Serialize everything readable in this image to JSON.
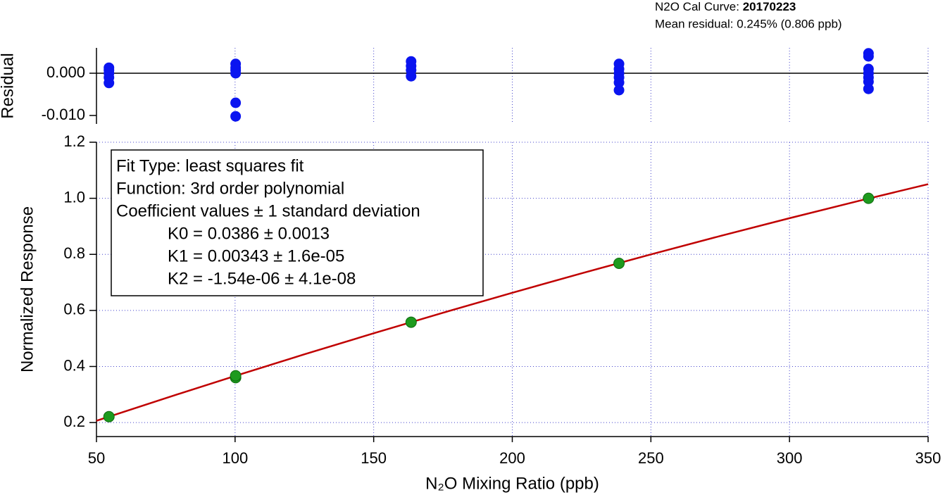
{
  "chart_data": [
    {
      "type": "scatter",
      "title_prefix": "N2O Cal Curve:",
      "title_date": "20170223",
      "subtitle": "Mean residual: 0.245% (0.806 ppb)",
      "ylabel": "Residual",
      "xlim": [
        50,
        350
      ],
      "xticks": [
        50,
        100,
        150,
        200,
        250,
        300,
        350
      ],
      "ylim": [
        -0.012,
        0.006
      ],
      "yticks": [
        {
          "value": 0,
          "label": "0.000"
        },
        {
          "value": -0.01,
          "label": "-0.010"
        }
      ],
      "grid": true,
      "series": [
        {
          "color": "#0a14f0",
          "x": [
            54.5,
            54.5,
            54.5,
            54.5,
            54.5,
            100.2,
            100.2,
            100.2,
            100.2,
            100.2,
            100.2,
            163.5,
            163.5,
            163.5,
            163.5,
            238.5,
            238.5,
            238.5,
            238.5,
            238.5,
            238.5,
            328.5,
            328.5,
            328.5,
            328.5,
            328.5,
            328.5,
            328.5
          ],
          "values": [
            0.0013,
            0.0007,
            0,
            -0.001,
            -0.0023,
            0.0022,
            0.0013,
            0.0007,
            0,
            -0.007,
            -0.0102,
            0.0028,
            0.0017,
            0.0007,
            -0.0007,
            0.0022,
            0.001,
            0,
            -0.001,
            -0.0022,
            -0.004,
            0.0047,
            0.004,
            0.001,
            0,
            -0.001,
            -0.002,
            -0.0037
          ]
        }
      ]
    },
    {
      "type": "scatter",
      "xlabel": "N₂O Mixing Ratio (ppb)",
      "ylabel": "Normalized Response",
      "xlim": [
        50,
        350
      ],
      "xticks": [
        50,
        100,
        150,
        200,
        250,
        300,
        350
      ],
      "ylim": [
        0.15,
        1.2
      ],
      "yticks": [
        0.2,
        0.4,
        0.6,
        0.8,
        {
          "value": 1.0,
          "label": "1.0"
        },
        1.2
      ],
      "grid": true,
      "annotation": {
        "header": [
          "Fit Type: least squares fit",
          "Function: 3rd order polynomial",
          "Coefficient values ± 1 standard deviation"
        ],
        "coefficients": [
          "K0 = 0.0386 ± 0.0013",
          "K1 = 0.00343 ± 1.6e-05",
          "K2 = -1.54e-06 ± 4.1e-08"
        ]
      },
      "series": [
        {
          "kind": "line",
          "color": "#c00000",
          "x": [
            50,
            75,
            100,
            125,
            150,
            175,
            200,
            225,
            250,
            275,
            300,
            325,
            350
          ],
          "values": [
            0.2063,
            0.2872,
            0.3662,
            0.4433,
            0.5184,
            0.5917,
            0.663,
            0.7324,
            0.7999,
            0.8654,
            0.929,
            0.9907,
            1.0504
          ]
        },
        {
          "kind": "points",
          "color": "#1e9a1e",
          "x": [
            54.5,
            100.2,
            100.2,
            163.5,
            238.5,
            328.5
          ],
          "values": [
            0.221,
            0.36,
            0.367,
            0.558,
            0.768,
            1.0
          ]
        }
      ]
    }
  ]
}
